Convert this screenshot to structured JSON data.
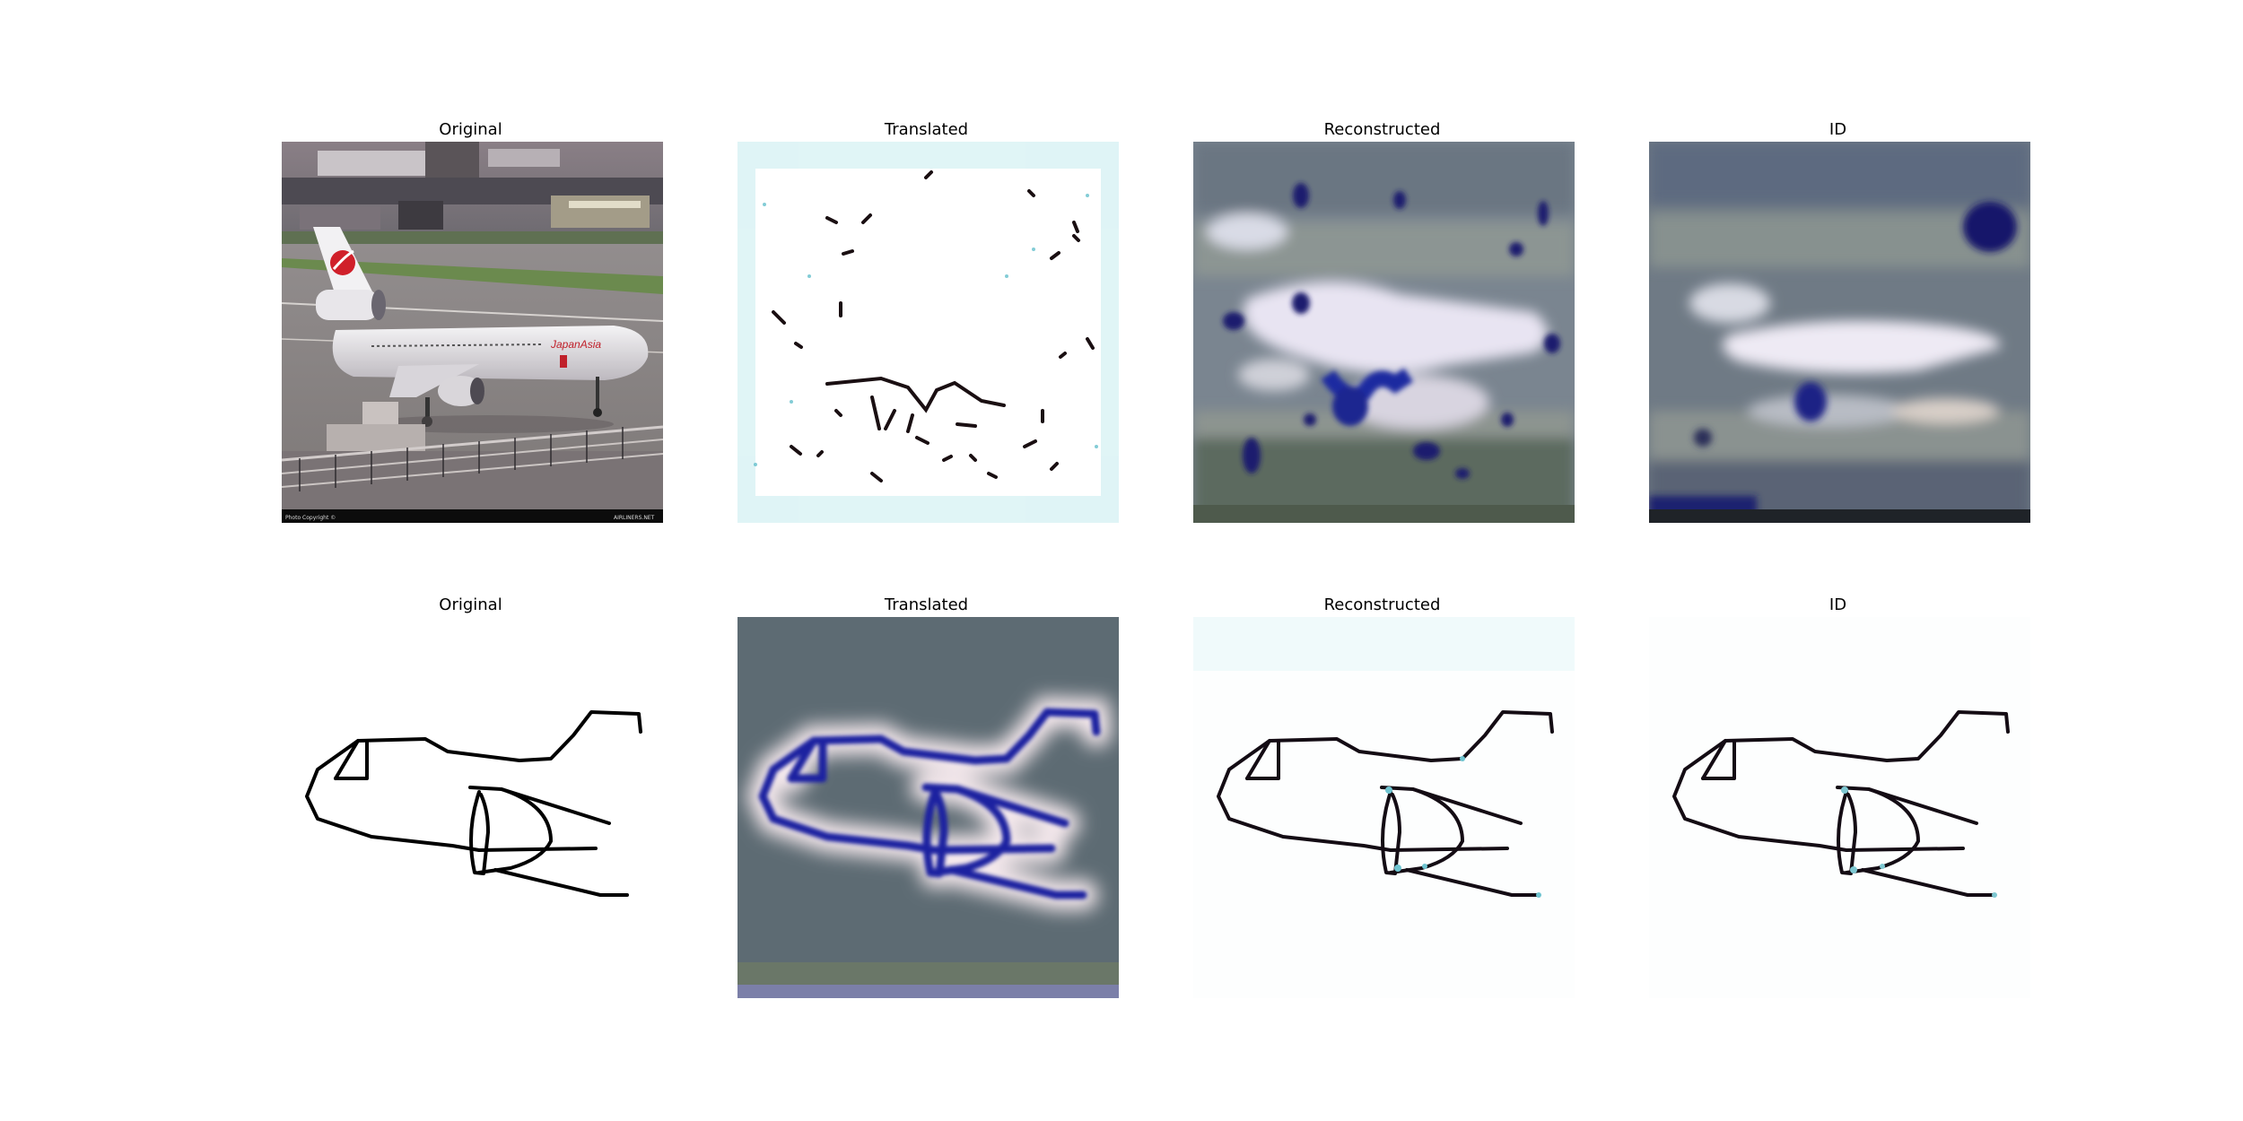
{
  "figure": {
    "rows": [
      {
        "panels": [
          {
            "title": "Original",
            "content": "photo-airplane-japan-asia"
          },
          {
            "title": "Translated",
            "content": "sparse-dark-strokes-on-white"
          },
          {
            "title": "Reconstructed",
            "content": "blurry-airplane-blue-artifacts"
          },
          {
            "title": "ID",
            "content": "blurry-airplane-photo"
          }
        ]
      },
      {
        "panels": [
          {
            "title": "Original",
            "content": "airplane-sketch"
          },
          {
            "title": "Translated",
            "content": "blue-glowing-sketch-on-gray"
          },
          {
            "title": "Reconstructed",
            "content": "airplane-sketch-artifacts"
          },
          {
            "title": "ID",
            "content": "airplane-sketch-artifacts"
          }
        ]
      }
    ],
    "airline_logo_text": "JapanAsia",
    "photo_credit": "Photo Copyright ©",
    "site_text": "AIRLINERS.NET"
  }
}
